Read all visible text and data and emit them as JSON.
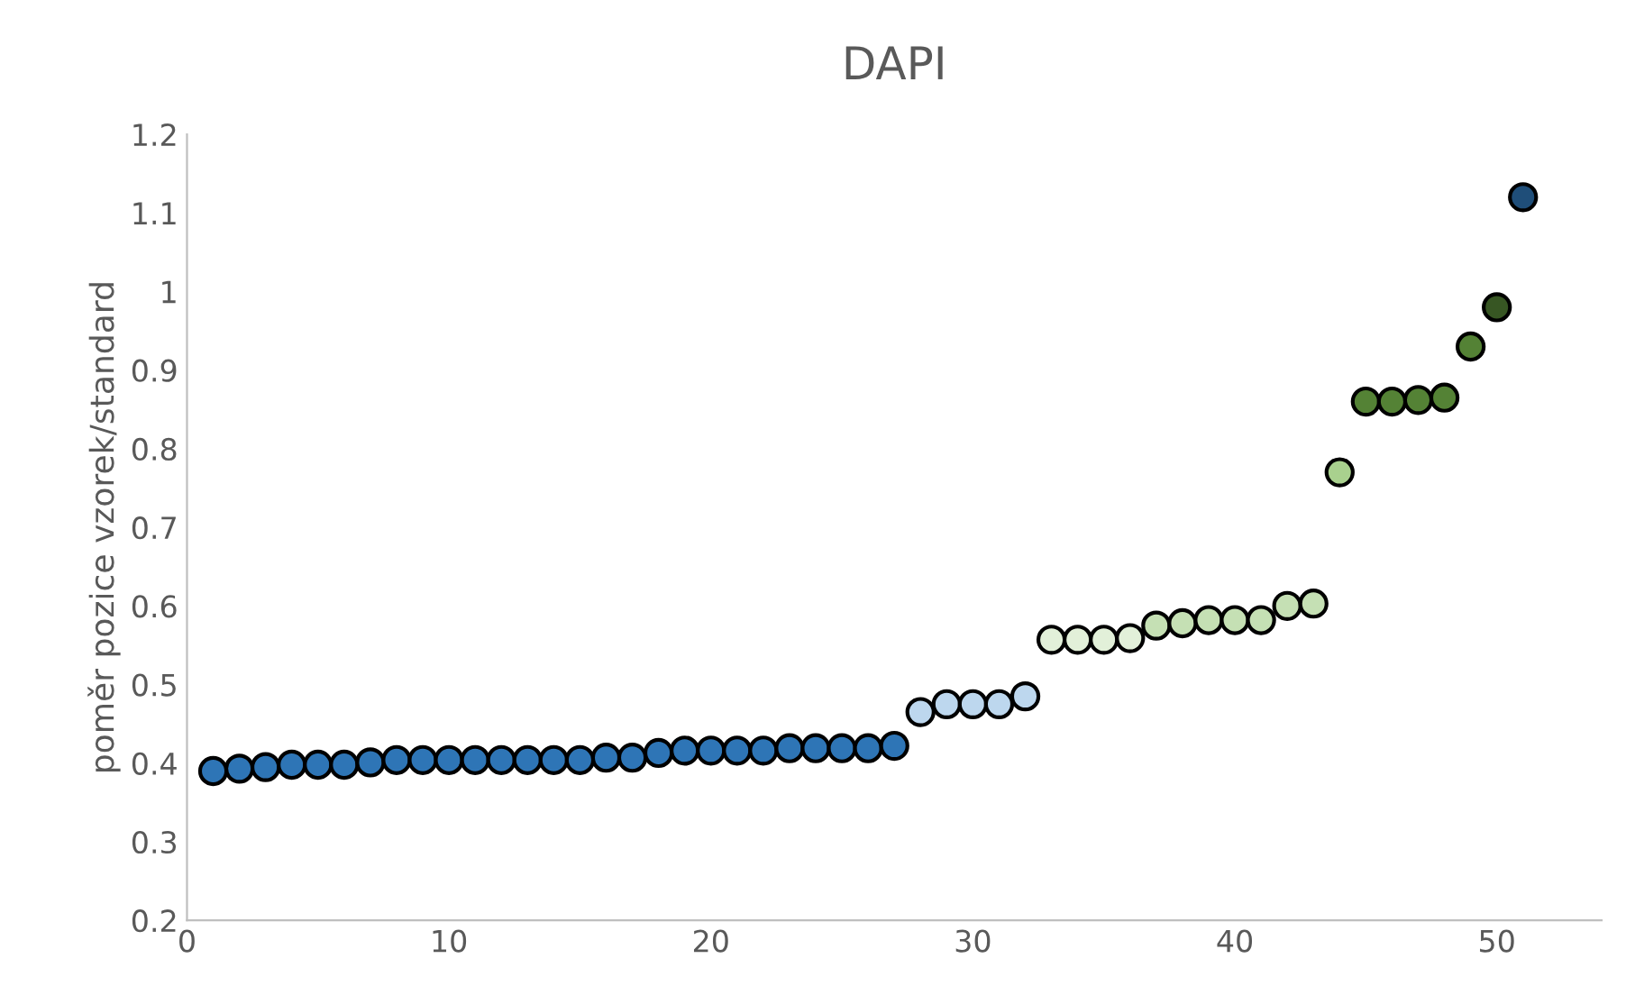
{
  "chart_data": {
    "type": "scatter",
    "title": "DAPI",
    "ylabel": "poměr pozice vzorek/standard",
    "x": [
      1,
      2,
      3,
      4,
      5,
      6,
      7,
      8,
      9,
      10,
      11,
      12,
      13,
      14,
      15,
      16,
      17,
      18,
      19,
      20,
      21,
      22,
      23,
      24,
      25,
      26,
      27,
      28,
      29,
      30,
      31,
      32,
      33,
      34,
      35,
      36,
      37,
      38,
      39,
      40,
      41,
      42,
      43,
      44,
      45,
      46,
      47,
      48,
      49,
      50,
      51
    ],
    "values": [
      0.39,
      0.393,
      0.395,
      0.398,
      0.398,
      0.398,
      0.401,
      0.404,
      0.404,
      0.404,
      0.404,
      0.404,
      0.404,
      0.404,
      0.404,
      0.407,
      0.407,
      0.413,
      0.416,
      0.416,
      0.416,
      0.416,
      0.419,
      0.419,
      0.419,
      0.419,
      0.422,
      0.465,
      0.475,
      0.475,
      0.475,
      0.485,
      0.557,
      0.557,
      0.557,
      0.559,
      0.575,
      0.578,
      0.582,
      0.582,
      0.582,
      0.6,
      0.603,
      0.77,
      0.86,
      0.86,
      0.862,
      0.865,
      0.93,
      0.98,
      1.12
    ],
    "colors": [
      "#2e75b6",
      "#2e75b6",
      "#2e75b6",
      "#2e75b6",
      "#2e75b6",
      "#2e75b6",
      "#2e75b6",
      "#2e75b6",
      "#2e75b6",
      "#2e75b6",
      "#2e75b6",
      "#2e75b6",
      "#2e75b6",
      "#2e75b6",
      "#2e75b6",
      "#2e75b6",
      "#2e75b6",
      "#2e75b6",
      "#2e75b6",
      "#2e75b6",
      "#2e75b6",
      "#2e75b6",
      "#2e75b6",
      "#2e75b6",
      "#2e75b6",
      "#2e75b6",
      "#2e75b6",
      "#bdd7ee",
      "#bdd7ee",
      "#bdd7ee",
      "#bdd7ee",
      "#bdd7ee",
      "#e2f0d9",
      "#e2f0d9",
      "#e2f0d9",
      "#e2f0d9",
      "#c5e0b4",
      "#c5e0b4",
      "#c5e0b4",
      "#c5e0b4",
      "#c5e0b4",
      "#c5e0b4",
      "#c5e0b4",
      "#a9d18e",
      "#548235",
      "#548235",
      "#548235",
      "#548235",
      "#548235",
      "#375623",
      "#1f4e79"
    ],
    "marker": "circle",
    "xlim": [
      0,
      54
    ],
    "xticks": [
      0,
      10,
      20,
      30,
      40,
      50
    ],
    "ylim": [
      0.2,
      1.2
    ],
    "yticks": [
      0.2,
      0.3,
      0.4,
      0.5,
      0.6,
      0.7,
      0.8,
      0.9,
      1,
      1.1,
      1.2
    ],
    "grid": false,
    "legend": false
  }
}
